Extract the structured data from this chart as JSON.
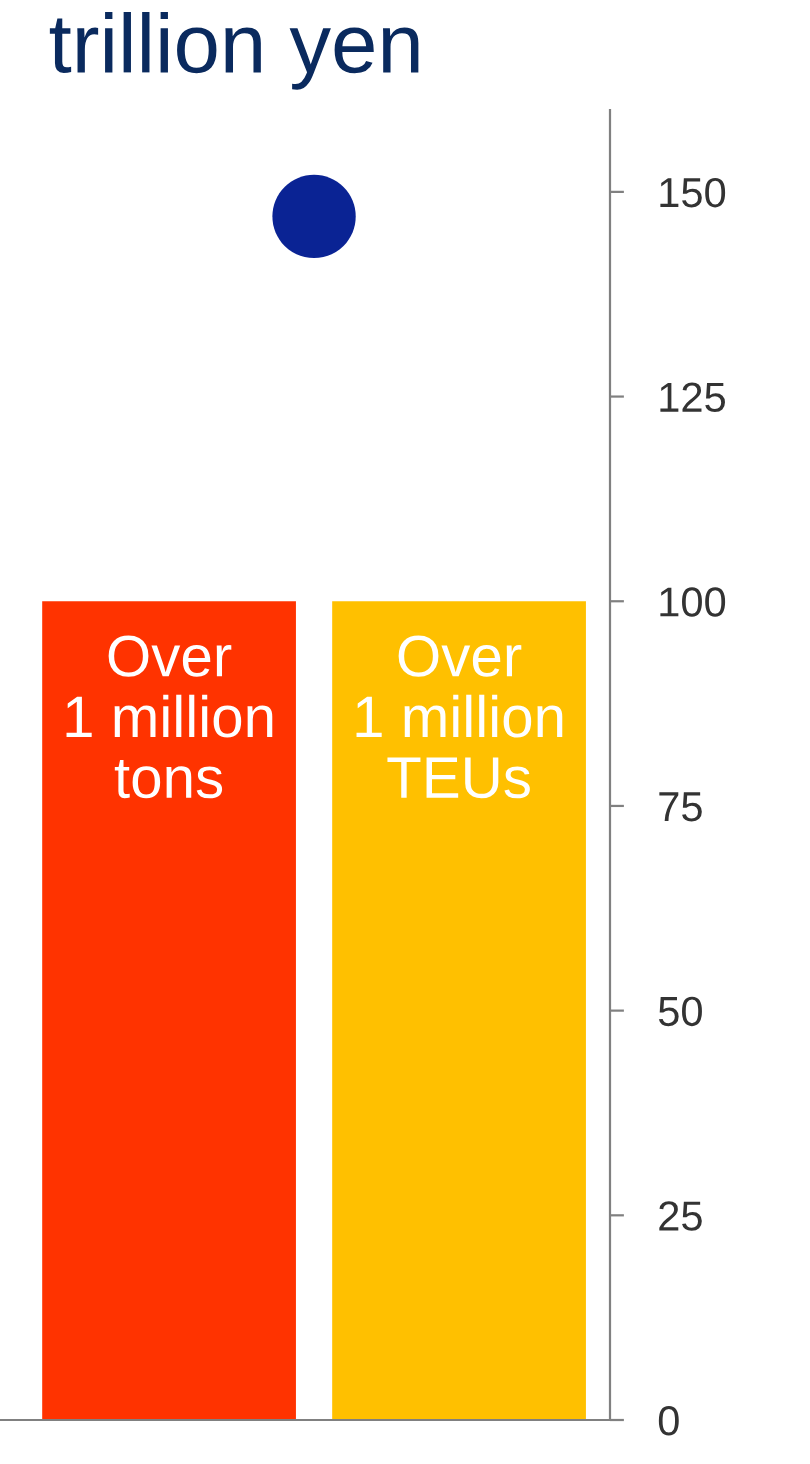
{
  "chart_data": {
    "type": "bar",
    "title": "trillion yen",
    "categories": [
      "Over\n1 million\ntons",
      null,
      "Over\n1 million\nTEUs"
    ],
    "series": [
      {
        "colors": [
          "#ff3300",
          null,
          "#ffc000"
        ],
        "values": [
          100,
          null,
          100
        ]
      },
      {
        "type": "scatter",
        "color": "#0a2394",
        "values": [
          null,
          147,
          null
        ]
      }
    ],
    "ylim": [
      0,
      160
    ],
    "yticks": [
      0,
      25,
      50,
      75,
      100,
      125,
      150
    ],
    "grid": false,
    "legend": false,
    "marker": "circle"
  }
}
